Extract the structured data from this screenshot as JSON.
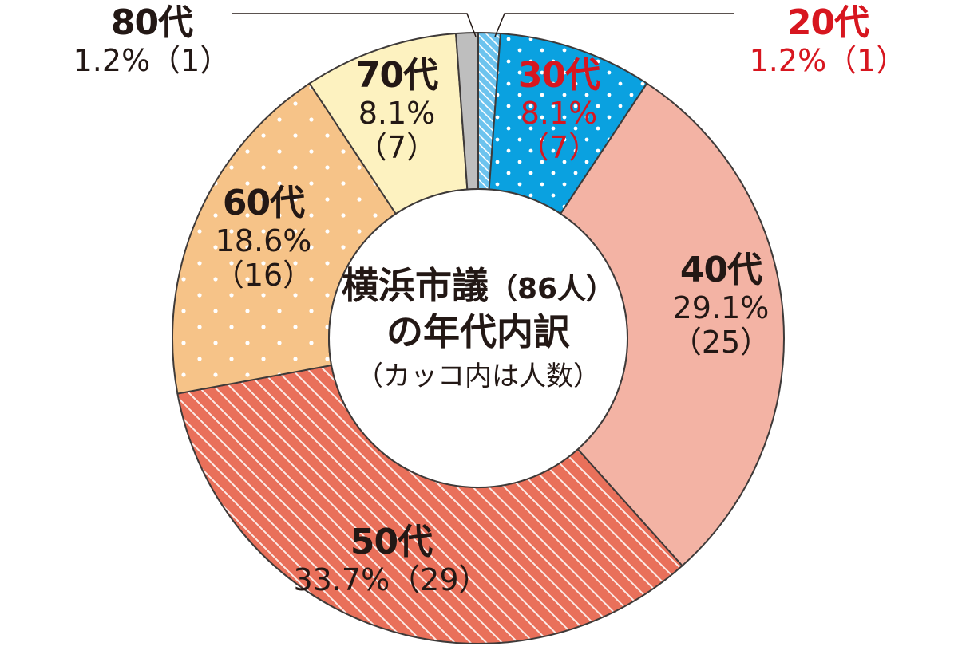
{
  "colors": {
    "20s": "#6cc3ee",
    "30s": "#0aa1e0",
    "40s": "#f3b3a4",
    "50s": "#e9705a",
    "60s": "#f6c388",
    "70s": "#fdf2c0",
    "80s": "#bebebe",
    "red_text": "#d7161f",
    "dark_text": "#231815"
  },
  "title": {
    "line1": "横浜市議",
    "line1_paren": "（86人）",
    "line2": "の年代内訳",
    "line3": "（カッコ内は人数）"
  },
  "chart_data": {
    "type": "pie",
    "style": "donut",
    "start": "top, clockwise",
    "slices": [
      {
        "key": "s20",
        "label": "20代",
        "percent": "1.2%",
        "count": "（1）",
        "value": 1,
        "pattern": "diagonal-stripes"
      },
      {
        "key": "s30",
        "label": "30代",
        "percent": "8.1%",
        "count": "（7）",
        "value": 7,
        "pattern": "dots"
      },
      {
        "key": "s40",
        "label": "40代",
        "percent": "29.1%",
        "count": "（25）",
        "value": 25,
        "pattern": "solid"
      },
      {
        "key": "s50",
        "label": "50代",
        "percent": "33.7%",
        "count": "（29）",
        "value": 29,
        "pattern": "diagonal-stripes"
      },
      {
        "key": "s60",
        "label": "60代",
        "percent": "18.6%",
        "count": "（16）",
        "value": 16,
        "pattern": "dots"
      },
      {
        "key": "s70",
        "label": "70代",
        "percent": "8.1%",
        "count": "（7）",
        "value": 7,
        "pattern": "solid"
      },
      {
        "key": "s80",
        "label": "80代",
        "percent": "1.2%",
        "count": "（1）",
        "value": 1,
        "pattern": "solid"
      }
    ]
  }
}
